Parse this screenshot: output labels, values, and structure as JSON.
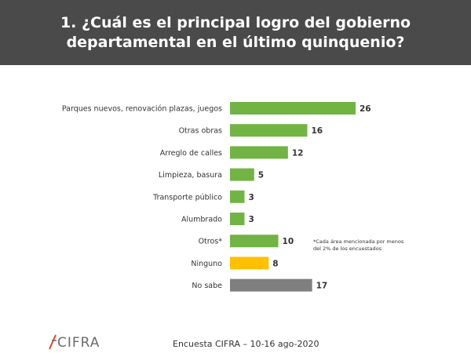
{
  "header": {
    "title_line1": "1. ¿Cuál es el principal logro del gobierno",
    "title_line2": "departamental en el último quinquenio?"
  },
  "note": "*Cada área mencionada por menos del 2% de los encuestados",
  "footer": {
    "logo_text": "CIFRA",
    "source": "Encuesta CIFRA – 10-16 ago-2020"
  },
  "colors": {
    "header_bg": "#4a4a4a",
    "green": "#71b444",
    "yellow": "#ffc000",
    "gray": "#7f7f7f",
    "logo_accent": "#e8432e"
  },
  "chart_data": {
    "type": "bar",
    "orientation": "horizontal",
    "categories": [
      "Parques nuevos, renovación plazas, juegos",
      "Otras obras",
      "Arreglo de calles",
      "Limpieza, basura",
      "Transporte público",
      "Alumbrado",
      "Otros*",
      "Ninguno",
      "No sabe"
    ],
    "values": [
      26,
      16,
      12,
      5,
      3,
      3,
      10,
      8,
      17
    ],
    "bar_colors": [
      "green",
      "green",
      "green",
      "green",
      "green",
      "green",
      "green",
      "yellow",
      "gray"
    ],
    "title": "1. ¿Cuál es el principal logro del gobierno departamental en el último quinquenio?",
    "xlabel": "",
    "ylabel": "",
    "xlim": [
      0,
      26
    ],
    "grid": false,
    "legend": "none"
  }
}
